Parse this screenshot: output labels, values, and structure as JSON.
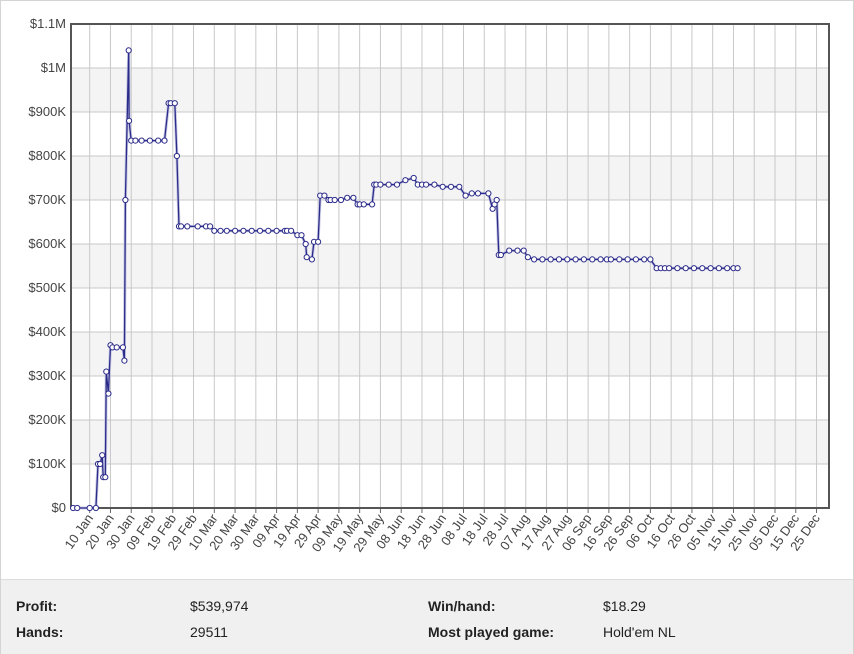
{
  "chart_data": {
    "type": "line",
    "title": "",
    "xlabel": "",
    "ylabel": "",
    "ylim": [
      0,
      1100000
    ],
    "y_ticks": [
      {
        "value": 0,
        "label": "$0"
      },
      {
        "value": 100000,
        "label": "$100K"
      },
      {
        "value": 200000,
        "label": "$200K"
      },
      {
        "value": 300000,
        "label": "$300K"
      },
      {
        "value": 400000,
        "label": "$400K"
      },
      {
        "value": 500000,
        "label": "$500K"
      },
      {
        "value": 600000,
        "label": "$600K"
      },
      {
        "value": 700000,
        "label": "$700K"
      },
      {
        "value": 800000,
        "label": "$800K"
      },
      {
        "value": 900000,
        "label": "$900K"
      },
      {
        "value": 1000000,
        "label": "$1M"
      },
      {
        "value": 1100000,
        "label": "$1.1M"
      }
    ],
    "x_tick_labels": [
      "10 Jan",
      "20 Jan",
      "30 Jan",
      "09 Feb",
      "19 Feb",
      "29 Feb",
      "10 Mar",
      "20 Mar",
      "30 Mar",
      "09 Apr",
      "19 Apr",
      "29 Apr",
      "09 May",
      "19 May",
      "29 May",
      "08 Jun",
      "18 Jun",
      "28 Jun",
      "08 Jul",
      "18 Jul",
      "28 Jul",
      "07 Aug",
      "17 Aug",
      "27 Aug",
      "06 Sep",
      "16 Sep",
      "26 Sep",
      "06 Oct",
      "16 Oct",
      "26 Oct",
      "05 Nov",
      "15 Nov",
      "25 Nov",
      "05 Dec",
      "15 Dec",
      "25 Dec"
    ],
    "x_unit": "days from 01 Jan",
    "xlim": [
      1,
      366
    ],
    "grid": true,
    "legend": "none",
    "line_color": "#2b2b8a",
    "marker_fill": "#ffffff",
    "series": [
      {
        "points": [
          [
            2,
            0
          ],
          [
            4,
            0
          ],
          [
            10,
            0
          ],
          [
            13,
            0
          ],
          [
            14,
            100000
          ],
          [
            15,
            100000
          ],
          [
            16,
            120000
          ],
          [
            16.5,
            70000
          ],
          [
            17.5,
            70000
          ],
          [
            18,
            310000
          ],
          [
            19,
            260000
          ],
          [
            20,
            370000
          ],
          [
            21,
            365000
          ],
          [
            23,
            365000
          ],
          [
            26,
            365000
          ],
          [
            26.7,
            335000
          ],
          [
            27.2,
            700000
          ],
          [
            28.8,
            1040000
          ],
          [
            29,
            880000
          ],
          [
            30,
            835000
          ],
          [
            32,
            835000
          ],
          [
            35,
            835000
          ],
          [
            39,
            835000
          ],
          [
            43,
            835000
          ],
          [
            46,
            835000
          ],
          [
            48,
            920000
          ],
          [
            49,
            920000
          ],
          [
            51,
            920000
          ],
          [
            52,
            800000
          ],
          [
            53,
            640000
          ],
          [
            54,
            640000
          ],
          [
            57,
            640000
          ],
          [
            62,
            640000
          ],
          [
            66,
            640000
          ],
          [
            68,
            640000
          ],
          [
            70,
            630000
          ],
          [
            73,
            630000
          ],
          [
            76,
            630000
          ],
          [
            80,
            630000
          ],
          [
            84,
            630000
          ],
          [
            88,
            630000
          ],
          [
            92,
            630000
          ],
          [
            96,
            630000
          ],
          [
            100,
            630000
          ],
          [
            104,
            630000
          ],
          [
            105,
            630000
          ],
          [
            107,
            630000
          ],
          [
            110,
            620000
          ],
          [
            112,
            620000
          ],
          [
            114,
            600000
          ],
          [
            114.5,
            570000
          ],
          [
            117,
            565000
          ],
          [
            118,
            605000
          ],
          [
            120,
            605000
          ],
          [
            121,
            710000
          ],
          [
            123,
            710000
          ],
          [
            125,
            700000
          ],
          [
            126,
            700000
          ],
          [
            128,
            700000
          ],
          [
            131,
            700000
          ],
          [
            134,
            705000
          ],
          [
            137,
            705000
          ],
          [
            139,
            690000
          ],
          [
            140,
            690000
          ],
          [
            142,
            690000
          ],
          [
            146,
            690000
          ],
          [
            147,
            735000
          ],
          [
            148,
            735000
          ],
          [
            150,
            735000
          ],
          [
            154,
            735000
          ],
          [
            158,
            735000
          ],
          [
            162,
            745000
          ],
          [
            166,
            750000
          ],
          [
            168,
            735000
          ],
          [
            170,
            735000
          ],
          [
            172,
            735000
          ],
          [
            176,
            735000
          ],
          [
            180,
            730000
          ],
          [
            184,
            730000
          ],
          [
            188,
            730000
          ],
          [
            191,
            710000
          ],
          [
            194,
            715000
          ],
          [
            197,
            715000
          ],
          [
            202,
            715000
          ],
          [
            204,
            680000
          ],
          [
            205,
            690000
          ],
          [
            206,
            700000
          ],
          [
            207,
            575000
          ],
          [
            208,
            575000
          ],
          [
            212,
            585000
          ],
          [
            216,
            585000
          ],
          [
            219,
            585000
          ],
          [
            221,
            570000
          ],
          [
            224,
            565000
          ],
          [
            228,
            565000
          ],
          [
            232,
            565000
          ],
          [
            236,
            565000
          ],
          [
            240,
            565000
          ],
          [
            244,
            565000
          ],
          [
            248,
            565000
          ],
          [
            252,
            565000
          ],
          [
            256,
            565000
          ],
          [
            259,
            565000
          ],
          [
            261,
            565000
          ],
          [
            265,
            565000
          ],
          [
            269,
            565000
          ],
          [
            273,
            565000
          ],
          [
            277,
            565000
          ],
          [
            280,
            565000
          ],
          [
            283,
            545000
          ],
          [
            285,
            545000
          ],
          [
            287,
            545000
          ],
          [
            289,
            545000
          ],
          [
            293,
            545000
          ],
          [
            297,
            545000
          ],
          [
            301,
            545000
          ],
          [
            305,
            545000
          ],
          [
            309,
            545000
          ],
          [
            313,
            545000
          ],
          [
            317,
            545000
          ],
          [
            320,
            545000
          ],
          [
            322,
            545000
          ]
        ]
      }
    ]
  },
  "stats": {
    "profit_label": "Profit:",
    "profit_value": "$539,974",
    "hands_label": "Hands:",
    "hands_value": "29511",
    "winhand_label": "Win/hand:",
    "winhand_value": "$18.29",
    "game_label": "Most played game:",
    "game_value": "Hold'em NL"
  }
}
